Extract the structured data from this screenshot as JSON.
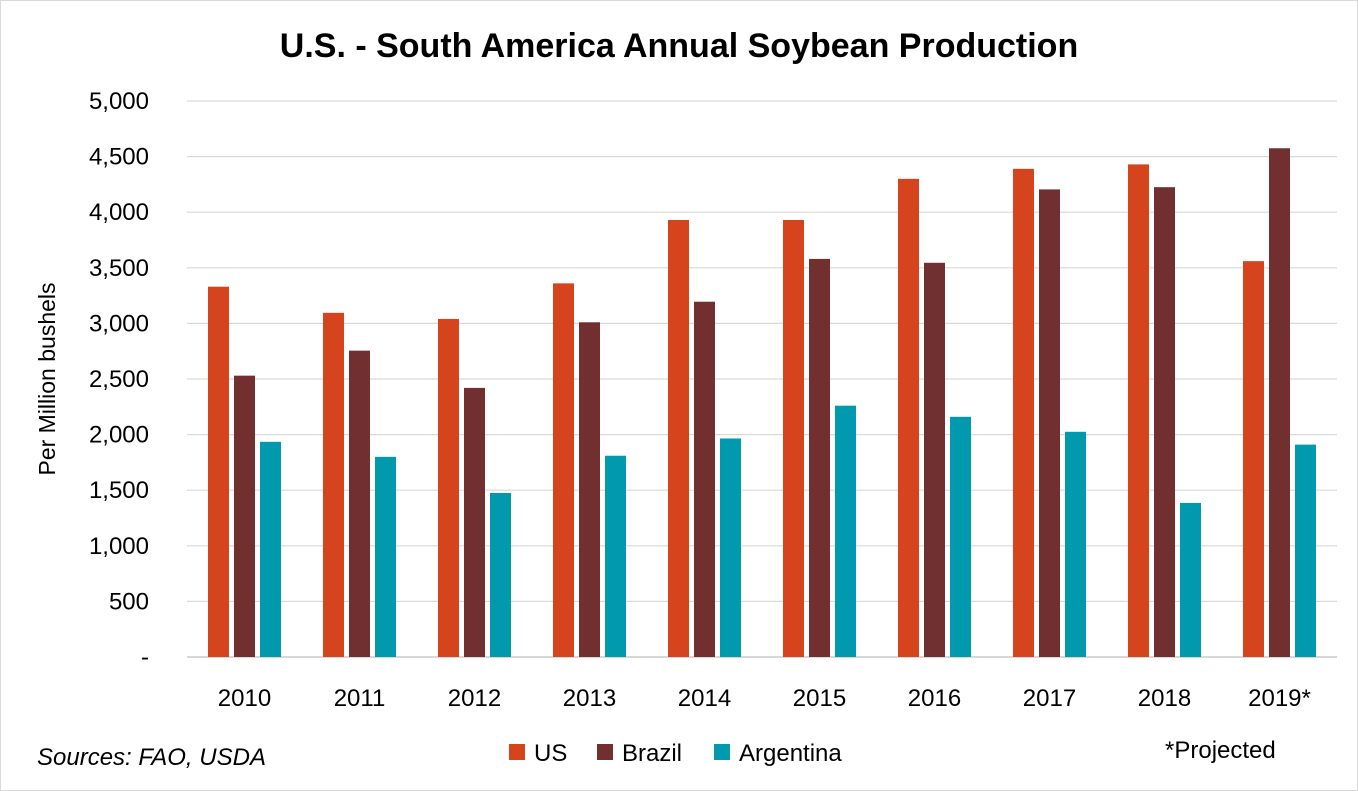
{
  "chart_data": {
    "type": "bar",
    "title": "U.S. - South America Annual Soybean Production",
    "ylabel": "Per Million bushels",
    "xlabel": "",
    "ylim": [
      0,
      5000
    ],
    "yticks": [
      0,
      500,
      1000,
      1500,
      2000,
      2500,
      3000,
      3500,
      4000,
      4500,
      5000
    ],
    "ytick_labels": [
      "-",
      "500",
      "1,000",
      "1,500",
      "2,000",
      "2,500",
      "3,000",
      "3,500",
      "4,000",
      "4,500",
      "5,000"
    ],
    "grid": true,
    "legend_position": "bottom",
    "categories": [
      "2010",
      "2011",
      "2012",
      "2013",
      "2014",
      "2015",
      "2016",
      "2017",
      "2018",
      "2019*"
    ],
    "series": [
      {
        "name": "US",
        "color": "#D5441C",
        "values": [
          3330,
          3095,
          3040,
          3360,
          3930,
          3930,
          4300,
          4390,
          4430,
          3560
        ]
      },
      {
        "name": "Brazil",
        "color": "#722F30",
        "values": [
          2530,
          2755,
          2420,
          3010,
          3195,
          3580,
          3545,
          4205,
          4225,
          4575
        ]
      },
      {
        "name": "Argentina",
        "color": "#0099AE",
        "values": [
          1935,
          1800,
          1475,
          1810,
          1965,
          2260,
          2160,
          2025,
          1385,
          1910
        ]
      }
    ],
    "annotations": {
      "source": "Sources: FAO, USDA",
      "note": "*Projected"
    }
  }
}
